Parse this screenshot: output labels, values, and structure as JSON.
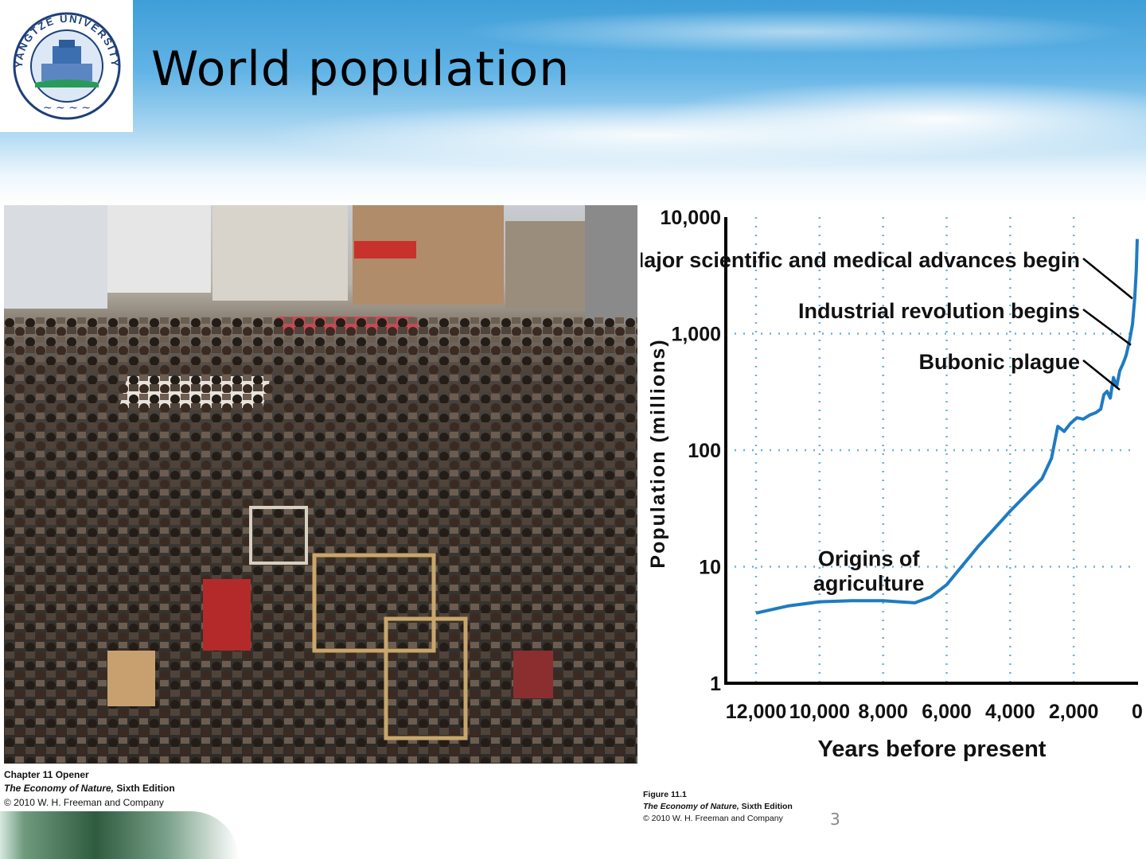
{
  "slide": {
    "title": "World population",
    "page_number": "3",
    "logo": {
      "icon": "yangtze-university-seal-icon",
      "text": "YANGTZE UNIVERSITY"
    }
  },
  "photo_caption": {
    "line1": "Chapter 11 Opener",
    "book": "The Economy of Nature,",
    "edition": " Sixth Edition",
    "copyright": "© 2010 W. H. Freeman and Company"
  },
  "figure_caption": {
    "line1": "Figure 11.1",
    "book": "The Economy of Nature,",
    "edition": " Sixth Edition",
    "copyright": "© 2010 W. H. Freeman and Company"
  },
  "chart_data": {
    "type": "line",
    "title": "",
    "xlabel": "Years before present",
    "ylabel": "Population (millions)",
    "x_reversed": true,
    "xlim": [
      12500,
      0
    ],
    "ylim": [
      1,
      10000
    ],
    "y_scale": "log",
    "x_ticks": [
      12000,
      10000,
      8000,
      6000,
      4000,
      2000,
      0
    ],
    "x_tick_labels": [
      "12,000",
      "10,000",
      "8,000",
      "6,000",
      "4,000",
      "2,000",
      "0"
    ],
    "y_ticks": [
      1,
      10,
      100,
      1000,
      10000
    ],
    "y_tick_labels": [
      "1",
      "10",
      "100",
      "1,000",
      "10,000"
    ],
    "grid": true,
    "line_color": "#1f7bc1",
    "series": [
      {
        "x": [
          12000,
          11000,
          10000,
          9000,
          8000,
          7500,
          7000,
          6500,
          6000,
          5000,
          4000,
          3000,
          2700,
          2500,
          2300,
          2100,
          1900,
          1700,
          1500,
          1300,
          1150,
          1050,
          950,
          850,
          750,
          650,
          550,
          450,
          350,
          250,
          150,
          80,
          30,
          0
        ],
        "y": [
          4,
          4.6,
          5,
          5.1,
          5.1,
          5,
          4.9,
          5.5,
          7,
          15,
          30,
          57,
          85,
          160,
          145,
          170,
          190,
          185,
          200,
          210,
          225,
          300,
          320,
          280,
          420,
          350,
          480,
          550,
          650,
          850,
          1200,
          2000,
          3500,
          6500
        ]
      }
    ],
    "annotations": [
      {
        "text": "Origins of",
        "text2": "agriculture",
        "x": 8000,
        "y": 5
      },
      {
        "text": "Major scientific and medical advances begin",
        "x": 50,
        "y": 2000
      },
      {
        "text": "Industrial revolution begins",
        "x": 100,
        "y": 800
      },
      {
        "text": "Bubonic plague",
        "x": 450,
        "y": 330
      }
    ]
  }
}
